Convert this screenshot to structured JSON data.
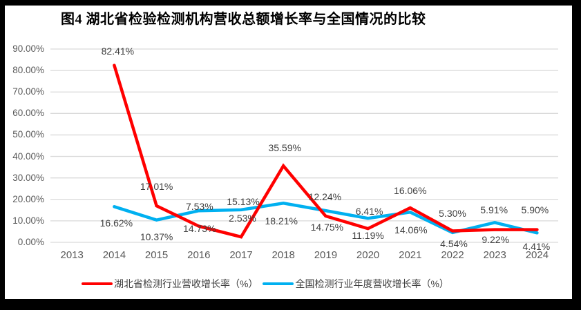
{
  "title": "图4 湖北省检验检测机构营收总额增长率与全国情况的比较",
  "frame": {
    "border_color": "#000000",
    "panel_color": "#FFFFFF",
    "gridline_color": "#D9D9D9"
  },
  "chart_data": {
    "type": "line",
    "title": "图4 湖北省检验检测机构营收总额增长率与全国情况的比较",
    "categories": [
      "2013",
      "2014",
      "2015",
      "2016",
      "2017",
      "2018",
      "2019",
      "2020",
      "2021",
      "2022",
      "2023",
      "2024"
    ],
    "y_axis": {
      "tick_labels": [
        "90.00%",
        "80.00%",
        "70.00%",
        "60.00%",
        "50.00%",
        "40.00%",
        "30.00%",
        "20.00%",
        "10.00%",
        "0.00%"
      ],
      "min": 0,
      "max": 90,
      "unit": "%",
      "grid": true
    },
    "legend_position": "bottom",
    "series": [
      {
        "name": "湖北省检测行业营收增长率（%）",
        "color": "#FF0000",
        "values": [
          null,
          82.41,
          17.01,
          7.53,
          2.53,
          35.59,
          12.24,
          6.41,
          16.06,
          5.3,
          5.91,
          5.9
        ],
        "labels": [
          null,
          "82.41%",
          "17.01%",
          "7.53%",
          "2.53%",
          "35.59%",
          "12.24%",
          "6.41%",
          "16.06%",
          "5.30%",
          "5.91%",
          "5.90%"
        ],
        "label_offsets": [
          null,
          [
            5,
            -21
          ],
          [
            0,
            -28
          ],
          [
            1,
            -29
          ],
          [
            2,
            -27
          ],
          [
            2,
            -26
          ],
          [
            -1,
            -28
          ],
          [
            2,
            -25
          ],
          [
            0,
            -25
          ],
          [
            0,
            -26
          ],
          [
            -1,
            -29
          ],
          [
            -3,
            -29
          ]
        ]
      },
      {
        "name": "全国检测行业年度营收增长率（%）",
        "color": "#00B0F0",
        "values": [
          null,
          16.62,
          10.37,
          14.73,
          15.13,
          18.21,
          14.75,
          11.19,
          14.06,
          4.54,
          9.22,
          4.41
        ],
        "labels": [
          null,
          "16.62%",
          "10.37%",
          "14.73%",
          "15.13%",
          "18.21%",
          "14.75%",
          "11.19%",
          "14.06%",
          "4.54%",
          "9.22%",
          "4.41%"
        ],
        "label_offsets": [
          null,
          [
            3,
            24
          ],
          [
            0,
            24
          ],
          [
            1,
            26
          ],
          [
            3,
            -12
          ],
          [
            -3,
            26
          ],
          [
            2,
            24
          ],
          [
            0,
            25
          ],
          [
            1,
            26
          ],
          [
            2,
            16
          ],
          [
            1,
            25
          ],
          [
            -1,
            20
          ]
        ]
      }
    ]
  }
}
